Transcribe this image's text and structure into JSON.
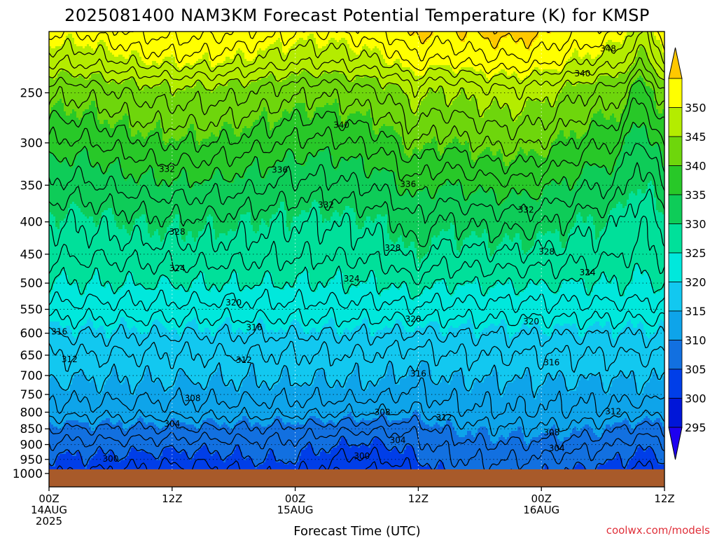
{
  "title": "2025081400 NAM3KM Forecast Potential Temperature (K) for KMSP",
  "credit": "coolwx.com/models",
  "chart_data": {
    "type": "contour",
    "title": "2025081400 NAM3KM Forecast Potential Temperature (K) for KMSP",
    "xlabel": "Forecast Time (UTC)",
    "ylabel": "",
    "y_axis": {
      "scale": "log",
      "inverted": true,
      "ticks": [
        250,
        300,
        350,
        400,
        450,
        500,
        550,
        600,
        650,
        700,
        750,
        800,
        850,
        900,
        950,
        1000
      ],
      "ylim": [
        1050,
        200
      ]
    },
    "x_axis": {
      "unit": "hours",
      "xlim": [
        0,
        60
      ],
      "ticks": [
        {
          "hour": 0,
          "lines": [
            "00Z",
            "14AUG",
            "2025"
          ]
        },
        {
          "hour": 12,
          "lines": [
            "12Z"
          ]
        },
        {
          "hour": 24,
          "lines": [
            "00Z",
            "15AUG"
          ]
        },
        {
          "hour": 36,
          "lines": [
            "12Z"
          ]
        },
        {
          "hour": 48,
          "lines": [
            "00Z",
            "16AUG"
          ]
        },
        {
          "hour": 60,
          "lines": [
            "12Z"
          ]
        }
      ]
    },
    "grid": true,
    "colorbar": {
      "labels": [
        295,
        300,
        305,
        310,
        315,
        320,
        325,
        330,
        335,
        340,
        345,
        350
      ],
      "colors": [
        "#1e00f0",
        "#0016d8",
        "#003ee8",
        "#1270e0",
        "#0ea4ea",
        "#12c8f0",
        "#00e8dc",
        "#00e09a",
        "#0ecc58",
        "#28c828",
        "#6ed60c",
        "#b4ec00",
        "#ffff00",
        "#ffc800"
      ]
    },
    "contour_labels": [
      {
        "hour": 54.5,
        "p": 213,
        "text": "348"
      },
      {
        "hour": 52,
        "p": 233,
        "text": "340"
      },
      {
        "hour": 28.5,
        "p": 281,
        "text": "340"
      },
      {
        "hour": 11.5,
        "p": 330,
        "text": "332"
      },
      {
        "hour": 22.5,
        "p": 331,
        "text": "336"
      },
      {
        "hour": 35,
        "p": 349,
        "text": "336"
      },
      {
        "hour": 27,
        "p": 376,
        "text": "332"
      },
      {
        "hour": 46.5,
        "p": 383,
        "text": "332"
      },
      {
        "hour": 12.5,
        "p": 415,
        "text": "328"
      },
      {
        "hour": 33.5,
        "p": 440,
        "text": "328"
      },
      {
        "hour": 48.5,
        "p": 446,
        "text": "328"
      },
      {
        "hour": 12.5,
        "p": 474,
        "text": "324"
      },
      {
        "hour": 29.5,
        "p": 492,
        "text": "324"
      },
      {
        "hour": 52.5,
        "p": 481,
        "text": "324"
      },
      {
        "hour": 18,
        "p": 537,
        "text": "320"
      },
      {
        "hour": 35.5,
        "p": 570,
        "text": "320"
      },
      {
        "hour": 47,
        "p": 575,
        "text": "320"
      },
      {
        "hour": 1,
        "p": 597,
        "text": "316"
      },
      {
        "hour": 20,
        "p": 588,
        "text": "316"
      },
      {
        "hour": 36,
        "p": 695,
        "text": "316"
      },
      {
        "hour": 49,
        "p": 668,
        "text": "316"
      },
      {
        "hour": 2,
        "p": 660,
        "text": "312"
      },
      {
        "hour": 19,
        "p": 662,
        "text": "312"
      },
      {
        "hour": 38.5,
        "p": 816,
        "text": "312"
      },
      {
        "hour": 55,
        "p": 798,
        "text": "312"
      },
      {
        "hour": 14,
        "p": 760,
        "text": "308"
      },
      {
        "hour": 32.5,
        "p": 800,
        "text": "308"
      },
      {
        "hour": 49,
        "p": 862,
        "text": "308"
      },
      {
        "hour": 12,
        "p": 835,
        "text": "304"
      },
      {
        "hour": 34,
        "p": 886,
        "text": "304"
      },
      {
        "hour": 49.5,
        "p": 912,
        "text": "304"
      },
      {
        "hour": 6,
        "p": 948,
        "text": "300"
      },
      {
        "hour": 30.5,
        "p": 938,
        "text": "300"
      }
    ]
  }
}
